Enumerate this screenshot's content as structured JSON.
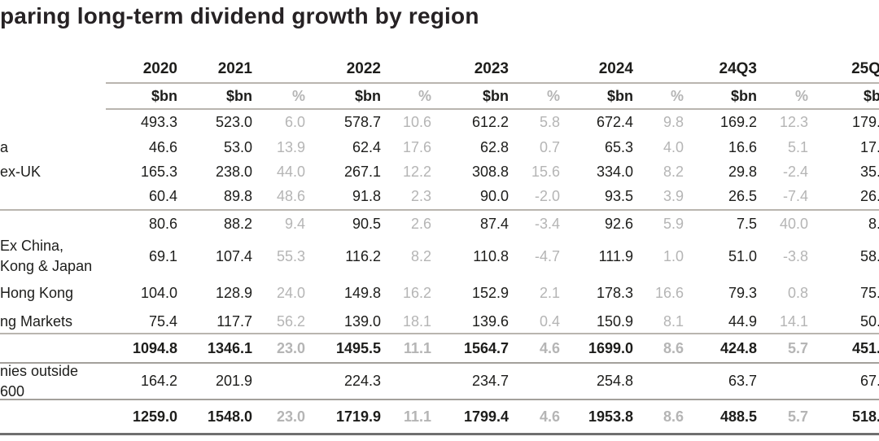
{
  "title": "paring long-term dividend growth by region",
  "colors": {
    "text": "#1d1d1b",
    "muted_percent": "#b5b5b5",
    "rule_light": "#b9b5af",
    "rule_medium": "#a3a09b",
    "rule_dark": "#6f6f6f",
    "background": "#ffffff"
  },
  "chart_data": {
    "type": "table",
    "title": "paring long-term dividend growth by region",
    "year_labels": [
      "2020",
      "2021",
      "2022",
      "2023",
      "2024",
      "24Q3",
      "25Q"
    ],
    "unit_labels": [
      "$bn",
      "$bn",
      "%",
      "$bn",
      "%",
      "$bn",
      "%",
      "$bn",
      "%",
      "$bn",
      "%",
      "$b"
    ],
    "rows": [
      {
        "label_lines": [],
        "bold": false,
        "values": [
          "493.3",
          "523.0",
          "6.0",
          "578.7",
          "10.6",
          "612.2",
          "5.8",
          "672.4",
          "9.8",
          "169.2",
          "12.3",
          "179."
        ]
      },
      {
        "label_lines": [
          "a"
        ],
        "bold": false,
        "values": [
          "46.6",
          "53.0",
          "13.9",
          "62.4",
          "17.6",
          "62.8",
          "0.7",
          "65.3",
          "4.0",
          "16.6",
          "5.1",
          "17."
        ]
      },
      {
        "label_lines": [
          "ex-UK"
        ],
        "bold": false,
        "values": [
          "165.3",
          "238.0",
          "44.0",
          "267.1",
          "12.2",
          "308.8",
          "15.6",
          "334.0",
          "8.2",
          "29.8",
          "-2.4",
          "35."
        ]
      },
      {
        "label_lines": [],
        "bold": false,
        "values": [
          "60.4",
          "89.8",
          "48.6",
          "91.8",
          "2.3",
          "90.0",
          "-2.0",
          "93.5",
          "3.9",
          "26.5",
          "-7.4",
          "26."
        ]
      },
      {
        "label_lines": [],
        "bold": false,
        "values": [
          "80.6",
          "88.2",
          "9.4",
          "90.5",
          "2.6",
          "87.4",
          "-3.4",
          "92.6",
          "5.9",
          "7.5",
          "40.0",
          "8."
        ]
      },
      {
        "label_lines": [
          "Ex China,",
          "Kong & Japan"
        ],
        "bold": false,
        "values": [
          "69.1",
          "107.4",
          "55.3",
          "116.2",
          "8.2",
          "110.8",
          "-4.7",
          "111.9",
          "1.0",
          "51.0",
          "-3.8",
          "58."
        ]
      },
      {
        "label_lines": [
          "Hong Kong"
        ],
        "bold": false,
        "values": [
          "104.0",
          "128.9",
          "24.0",
          "149.8",
          "16.2",
          "152.9",
          "2.1",
          "178.3",
          "16.6",
          "79.3",
          "0.8",
          "75."
        ]
      },
      {
        "label_lines": [
          "ng Markets"
        ],
        "bold": false,
        "values": [
          "75.4",
          "117.7",
          "56.2",
          "139.0",
          "18.1",
          "139.6",
          "0.4",
          "150.9",
          "8.1",
          "44.9",
          "14.1",
          "50."
        ]
      },
      {
        "label_lines": [],
        "bold": true,
        "values": [
          "1094.8",
          "1346.1",
          "23.0",
          "1495.5",
          "11.1",
          "1564.7",
          "4.6",
          "1699.0",
          "8.6",
          "424.8",
          "5.7",
          "451."
        ]
      },
      {
        "label_lines": [
          "nies outside",
          "600"
        ],
        "bold": false,
        "values": [
          "164.2",
          "201.9",
          "",
          "224.3",
          "",
          "234.7",
          "",
          "254.8",
          "",
          "63.7",
          "",
          "67."
        ]
      },
      {
        "label_lines": [],
        "bold": true,
        "values": [
          "1259.0",
          "1548.0",
          "23.0",
          "1719.9",
          "11.1",
          "1799.4",
          "4.6",
          "1953.8",
          "8.6",
          "488.5",
          "5.7",
          "518."
        ]
      }
    ]
  }
}
